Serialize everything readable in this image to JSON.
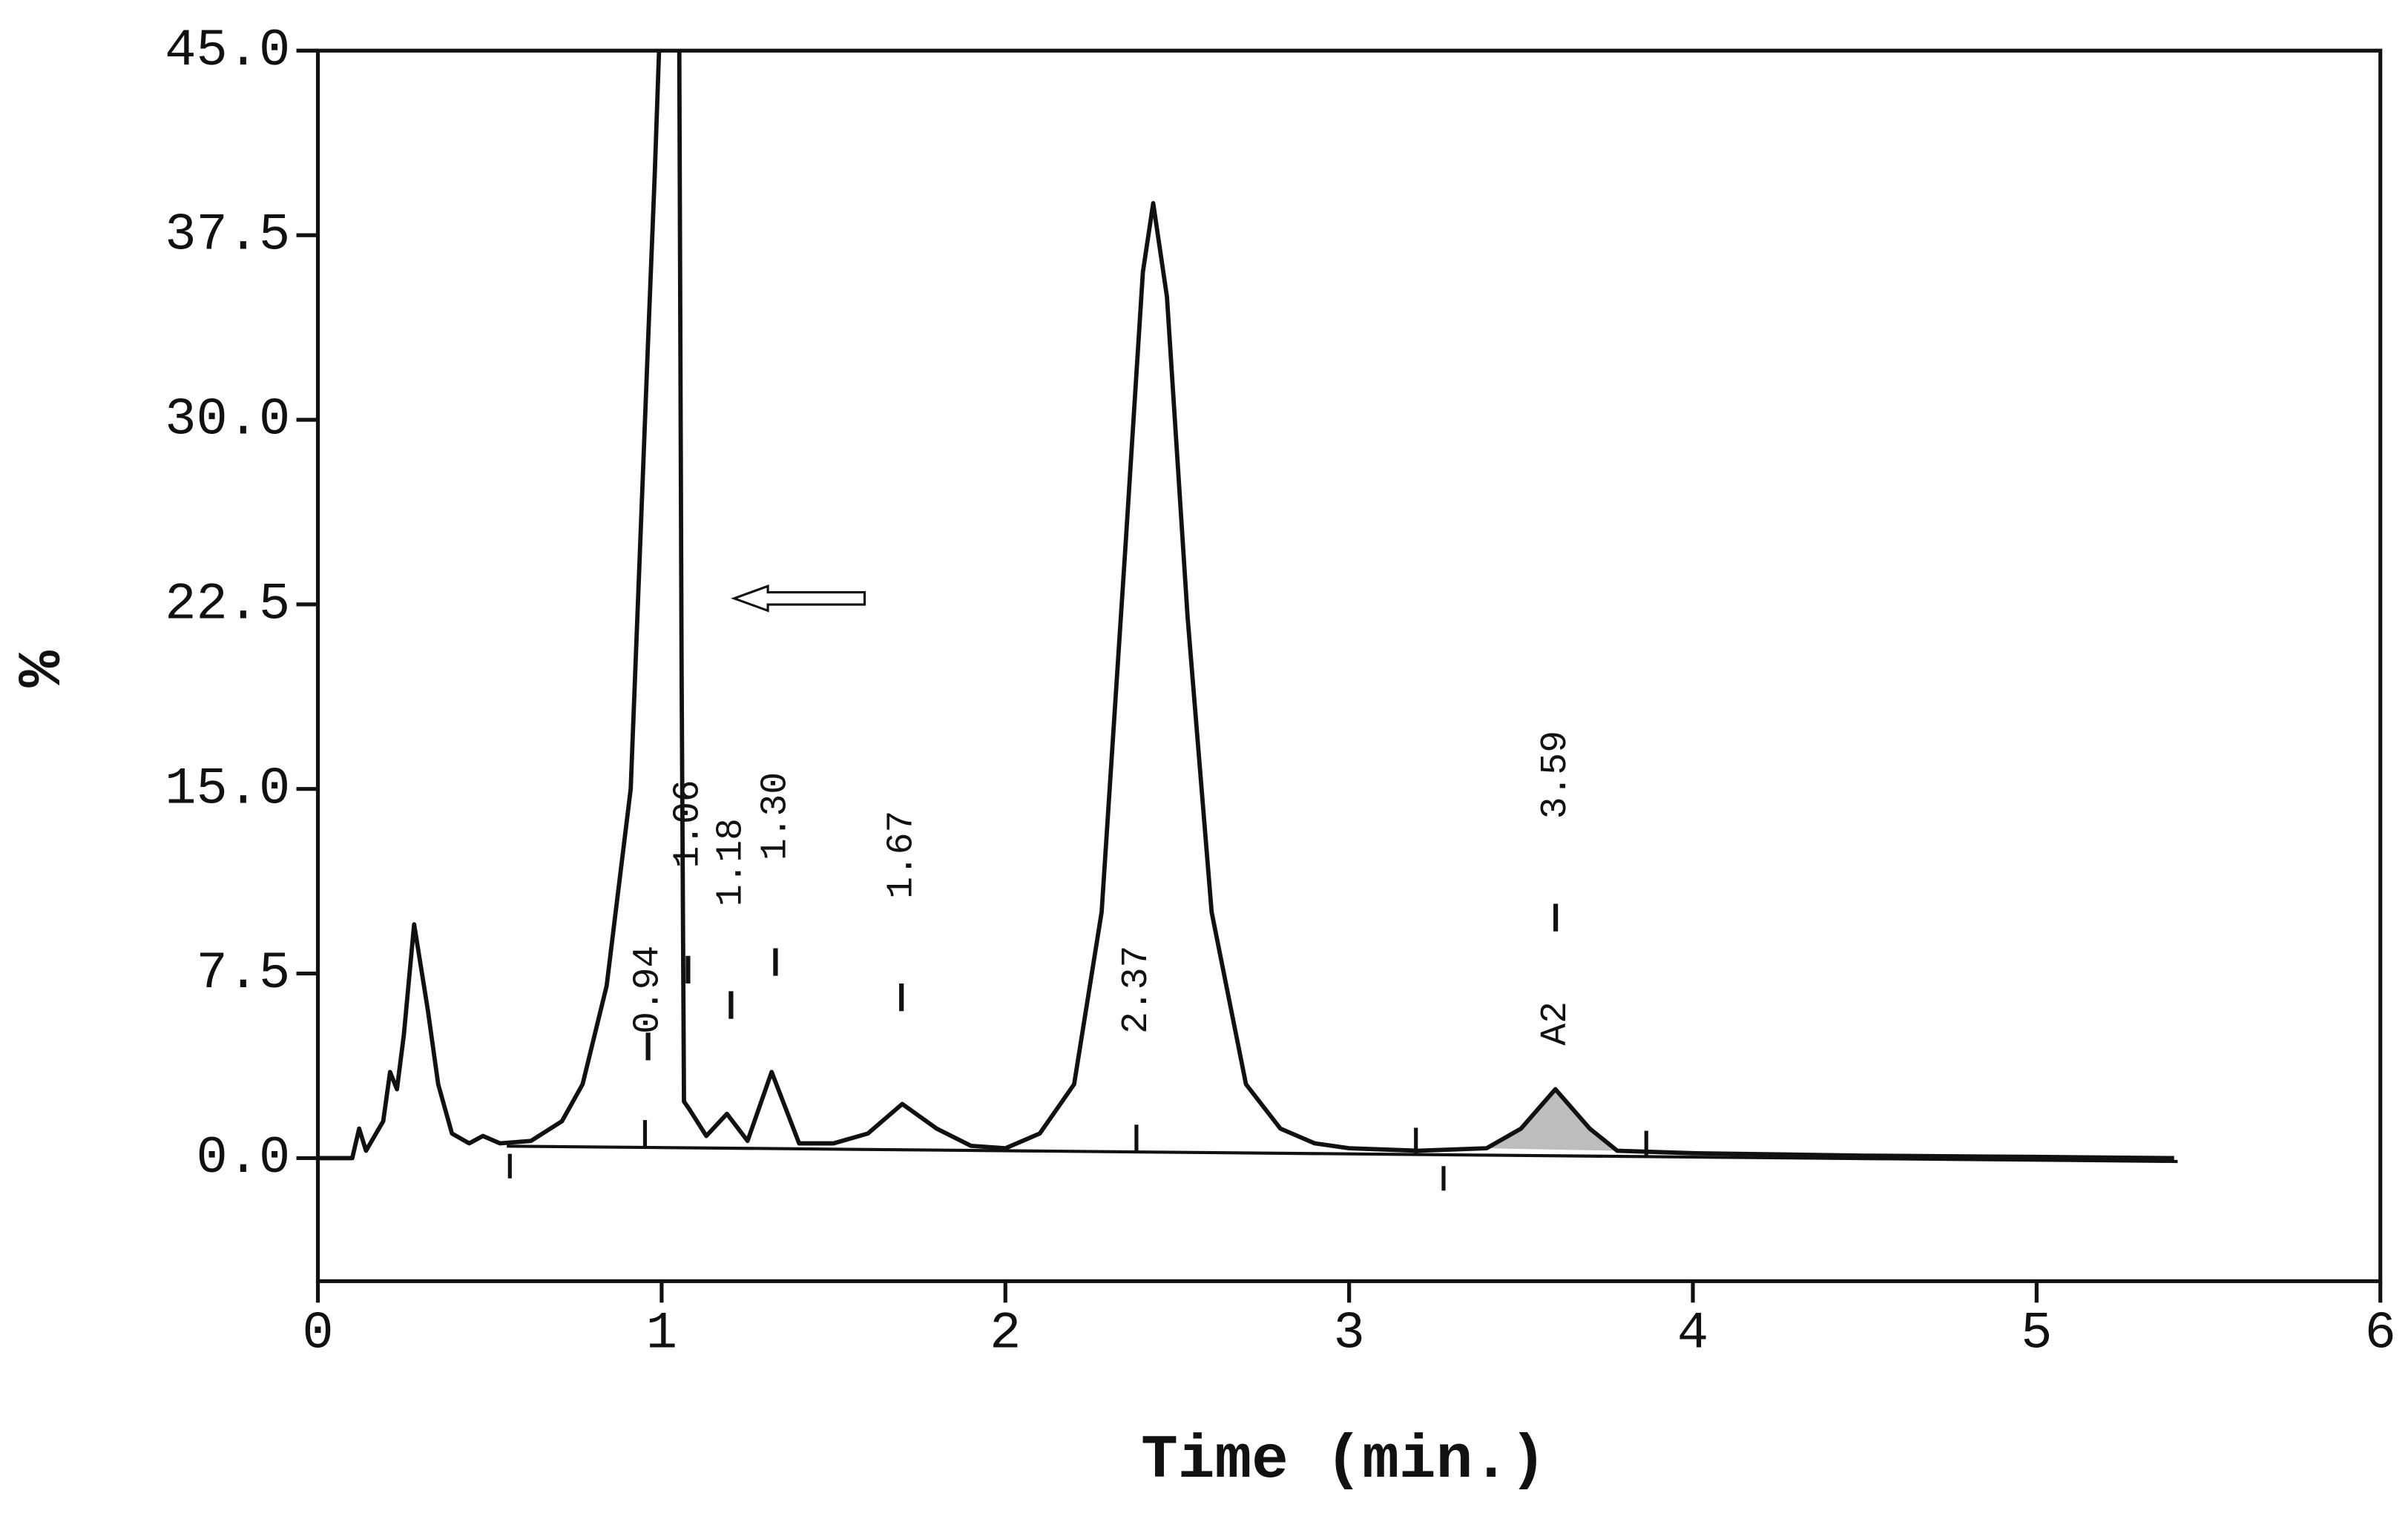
{
  "chart_data": {
    "type": "line",
    "xlabel": "Time (min.)",
    "ylabel": "%",
    "xlim": [
      0,
      6
    ],
    "ylim": [
      -5,
      45
    ],
    "xticks": [
      0,
      1,
      2,
      3,
      4,
      5,
      6
    ],
    "yticks": [
      {
        "value": 0,
        "label": "0.0"
      },
      7.5,
      {
        "value": 15,
        "label": "15.0"
      },
      22.5,
      {
        "value": 30,
        "label": "30.0"
      },
      37.5,
      {
        "value": 45,
        "label": "45.0"
      }
    ],
    "grid": false,
    "color": "#111111",
    "fill_color": "#bdbdbd",
    "x": [
      0,
      0.1,
      0.12,
      0.14,
      0.19,
      0.21,
      0.23,
      0.25,
      0.28,
      0.32,
      0.35,
      0.39,
      0.44,
      0.48,
      0.53,
      0.62,
      0.71,
      0.77,
      0.84,
      0.91,
      0.96,
      0.98,
      0.995,
      1.02,
      1.05,
      1.058,
      1.065,
      1.08,
      1.13,
      1.19,
      1.25,
      1.32,
      1.4,
      1.5,
      1.6,
      1.7,
      1.8,
      1.9,
      2.0,
      2.1,
      2.2,
      2.28,
      2.35,
      2.4,
      2.43,
      2.47,
      2.53,
      2.6,
      2.7,
      2.8,
      2.9,
      3.0,
      3.2,
      3.4,
      3.5,
      3.6,
      3.7,
      3.78,
      4.0,
      4.5,
      5.0,
      5.4
    ],
    "values": [
      0,
      0,
      1.2,
      0.3,
      1.5,
      3.5,
      2.8,
      5,
      9.5,
      6,
      3,
      1,
      0.6,
      0.9,
      0.6,
      0.7,
      1.5,
      3,
      7,
      15,
      33,
      40,
      46,
      54,
      50,
      20,
      2.3,
      2.0,
      0.9,
      1.8,
      0.7,
      3.5,
      0.6,
      0.6,
      1.0,
      2.2,
      1.2,
      0.5,
      0.4,
      1.0,
      3,
      10,
      25,
      36,
      38.8,
      35,
      22,
      10,
      3,
      1.2,
      0.6,
      0.4,
      0.3,
      0.4,
      1.2,
      2.8,
      1.2,
      0.3,
      0.2,
      0.1,
      0.05,
      0
    ],
    "annotations": [
      "0.94",
      "1.06",
      "1.18",
      "1.30",
      "1.67",
      "2.37",
      "3.59",
      "A2"
    ]
  }
}
